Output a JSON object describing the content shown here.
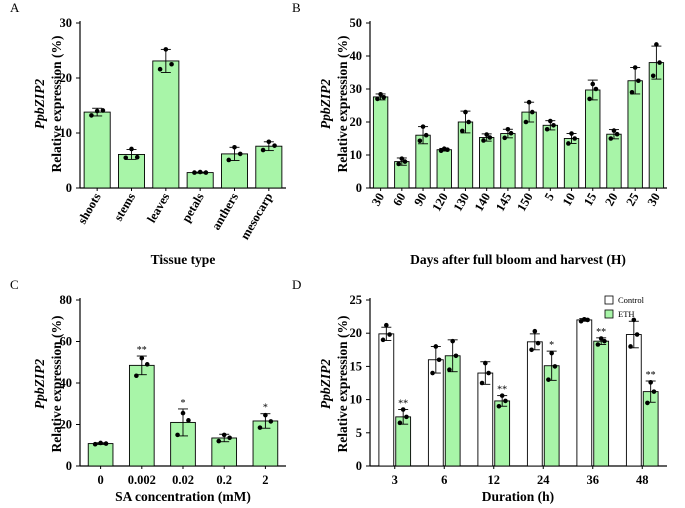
{
  "colors": {
    "bar_green": "#a8f5a8",
    "control_fill": "#ffffff",
    "stroke": "#000000",
    "dot": "#000000",
    "star": "#333333"
  },
  "chart_data": [
    {
      "panel": "A",
      "type": "bar",
      "title": "",
      "ylabel_gene": "PpbZIP2",
      "ylabel": "Relative expression (%)",
      "xlabel": "Tissue type",
      "ylim": [
        0,
        30
      ],
      "yticks": [
        0,
        10,
        20,
        30
      ],
      "categories": [
        "shoots",
        "stems",
        "leaves",
        "petals",
        "anthers",
        "mesocarp"
      ],
      "values": [
        13.8,
        6.1,
        23.1,
        2.8,
        6.2,
        7.6
      ],
      "errors": [
        0.7,
        0.9,
        2.1,
        0.1,
        1.2,
        0.8
      ],
      "points": [
        [
          13.2,
          14.1,
          14.0
        ],
        [
          5.5,
          5.6,
          7.1
        ],
        [
          21.6,
          22.5,
          25.2
        ],
        [
          2.8,
          2.8,
          2.9
        ],
        [
          5.1,
          6.2,
          7.4
        ],
        [
          6.9,
          7.7,
          8.4
        ]
      ],
      "stars": [
        "",
        "",
        "",
        "",
        "",
        ""
      ]
    },
    {
      "panel": "B",
      "type": "bar",
      "title": "",
      "ylabel_gene": "PpbZIP2",
      "ylabel": "Relative expression (%)",
      "xlabel": "Days after full bloom and harvest (H)",
      "ylim": [
        0,
        50
      ],
      "yticks": [
        0,
        10,
        20,
        30,
        40,
        50
      ],
      "categories": [
        "30",
        "60",
        "90",
        "120",
        "130",
        "140",
        "145",
        "150",
        "5",
        "10",
        "15",
        "20",
        "25",
        "30"
      ],
      "values": [
        27.6,
        8.0,
        16.0,
        11.6,
        20.0,
        15.3,
        16.5,
        23.0,
        19.0,
        15.0,
        29.7,
        16.3,
        32.5,
        38.0
      ],
      "errors": [
        0.9,
        1.1,
        2.6,
        0.4,
        3.3,
        1.1,
        1.3,
        3.0,
        1.4,
        1.5,
        3.0,
        1.4,
        4.0,
        5.0
      ],
      "points": [
        [
          27.0,
          27.5,
          28.4
        ],
        [
          7.3,
          8.0,
          8.9
        ],
        [
          14.3,
          16.0,
          18.6
        ],
        [
          11.3,
          11.6,
          11.9
        ],
        [
          17.3,
          20.0,
          23.0
        ],
        [
          14.4,
          15.3,
          16.2
        ],
        [
          15.2,
          16.6,
          17.8
        ],
        [
          20.0,
          23.0,
          26.0
        ],
        [
          17.8,
          19.0,
          20.3
        ],
        [
          13.5,
          15.0,
          16.5
        ],
        [
          27.0,
          30.0,
          31.5
        ],
        [
          15.0,
          16.3,
          17.4
        ],
        [
          29.0,
          32.5,
          36.5
        ],
        [
          34.0,
          38.0,
          43.5
        ]
      ],
      "stars": [
        "",
        "",
        "",
        "",
        "",
        "",
        "",
        "",
        "",
        "",
        "",
        "",
        "",
        ""
      ]
    },
    {
      "panel": "C",
      "type": "bar",
      "title": "",
      "ylabel_gene": "PpbZIP2",
      "ylabel": "Relative expression (%)",
      "xlabel": "SA concentration (mM)",
      "ylim": [
        0,
        80
      ],
      "yticks": [
        0,
        20,
        40,
        60,
        80
      ],
      "categories": [
        "0",
        "0.002",
        "0.02",
        "0.2",
        "2"
      ],
      "values": [
        10.8,
        48.5,
        21.0,
        13.5,
        21.7
      ],
      "errors": [
        0.4,
        4.5,
        6.5,
        1.8,
        3.5
      ],
      "points": [
        [
          10.5,
          10.8,
          11.1
        ],
        [
          43.5,
          49.0,
          52.0
        ],
        [
          15.0,
          22.0,
          25.5
        ],
        [
          12.0,
          13.6,
          15.0
        ],
        [
          18.5,
          21.5,
          24.5
        ]
      ],
      "stars": [
        "",
        "**",
        "*",
        "",
        "*"
      ]
    },
    {
      "panel": "D",
      "type": "bar",
      "title": "",
      "ylabel_gene": "PpbZIP2",
      "ylabel": "Relative expression (%)",
      "xlabel": "Duration (h)",
      "ylim": [
        0,
        25
      ],
      "yticks": [
        0,
        5,
        10,
        15,
        20,
        25
      ],
      "categories": [
        "3",
        "6",
        "12",
        "24",
        "36",
        "48"
      ],
      "legend": [
        "Control",
        "ETH"
      ],
      "series": [
        {
          "name": "Control",
          "values": [
            19.9,
            16.0,
            14.0,
            18.7,
            22.0,
            19.8
          ],
          "errors": [
            1.0,
            2.0,
            1.7,
            1.2,
            0.2,
            2.0
          ],
          "points": [
            [
              19.0,
              19.8,
              21.2
            ],
            [
              14.0,
              16.0,
              18.0
            ],
            [
              12.5,
              14.0,
              15.5
            ],
            [
              17.5,
              18.5,
              20.3
            ],
            [
              21.8,
              22.0,
              22.1
            ],
            [
              18.0,
              19.8,
              22.0
            ]
          ],
          "stars": [
            "",
            "",
            "",
            "",
            "",
            ""
          ]
        },
        {
          "name": "ETH",
          "values": [
            7.4,
            16.6,
            9.8,
            15.1,
            18.8,
            11.2
          ],
          "errors": [
            1.1,
            2.4,
            0.8,
            2.2,
            0.5,
            1.6
          ],
          "points": [
            [
              6.5,
              7.4,
              8.5
            ],
            [
              14.5,
              16.6,
              18.8
            ],
            [
              9.0,
              9.8,
              10.6
            ],
            [
              13.0,
              15.0,
              17.0
            ],
            [
              18.3,
              18.8,
              19.2
            ],
            [
              9.5,
              11.2,
              12.6
            ]
          ],
          "stars": [
            "**",
            "",
            "**",
            "*",
            "**",
            "**"
          ]
        }
      ]
    }
  ]
}
